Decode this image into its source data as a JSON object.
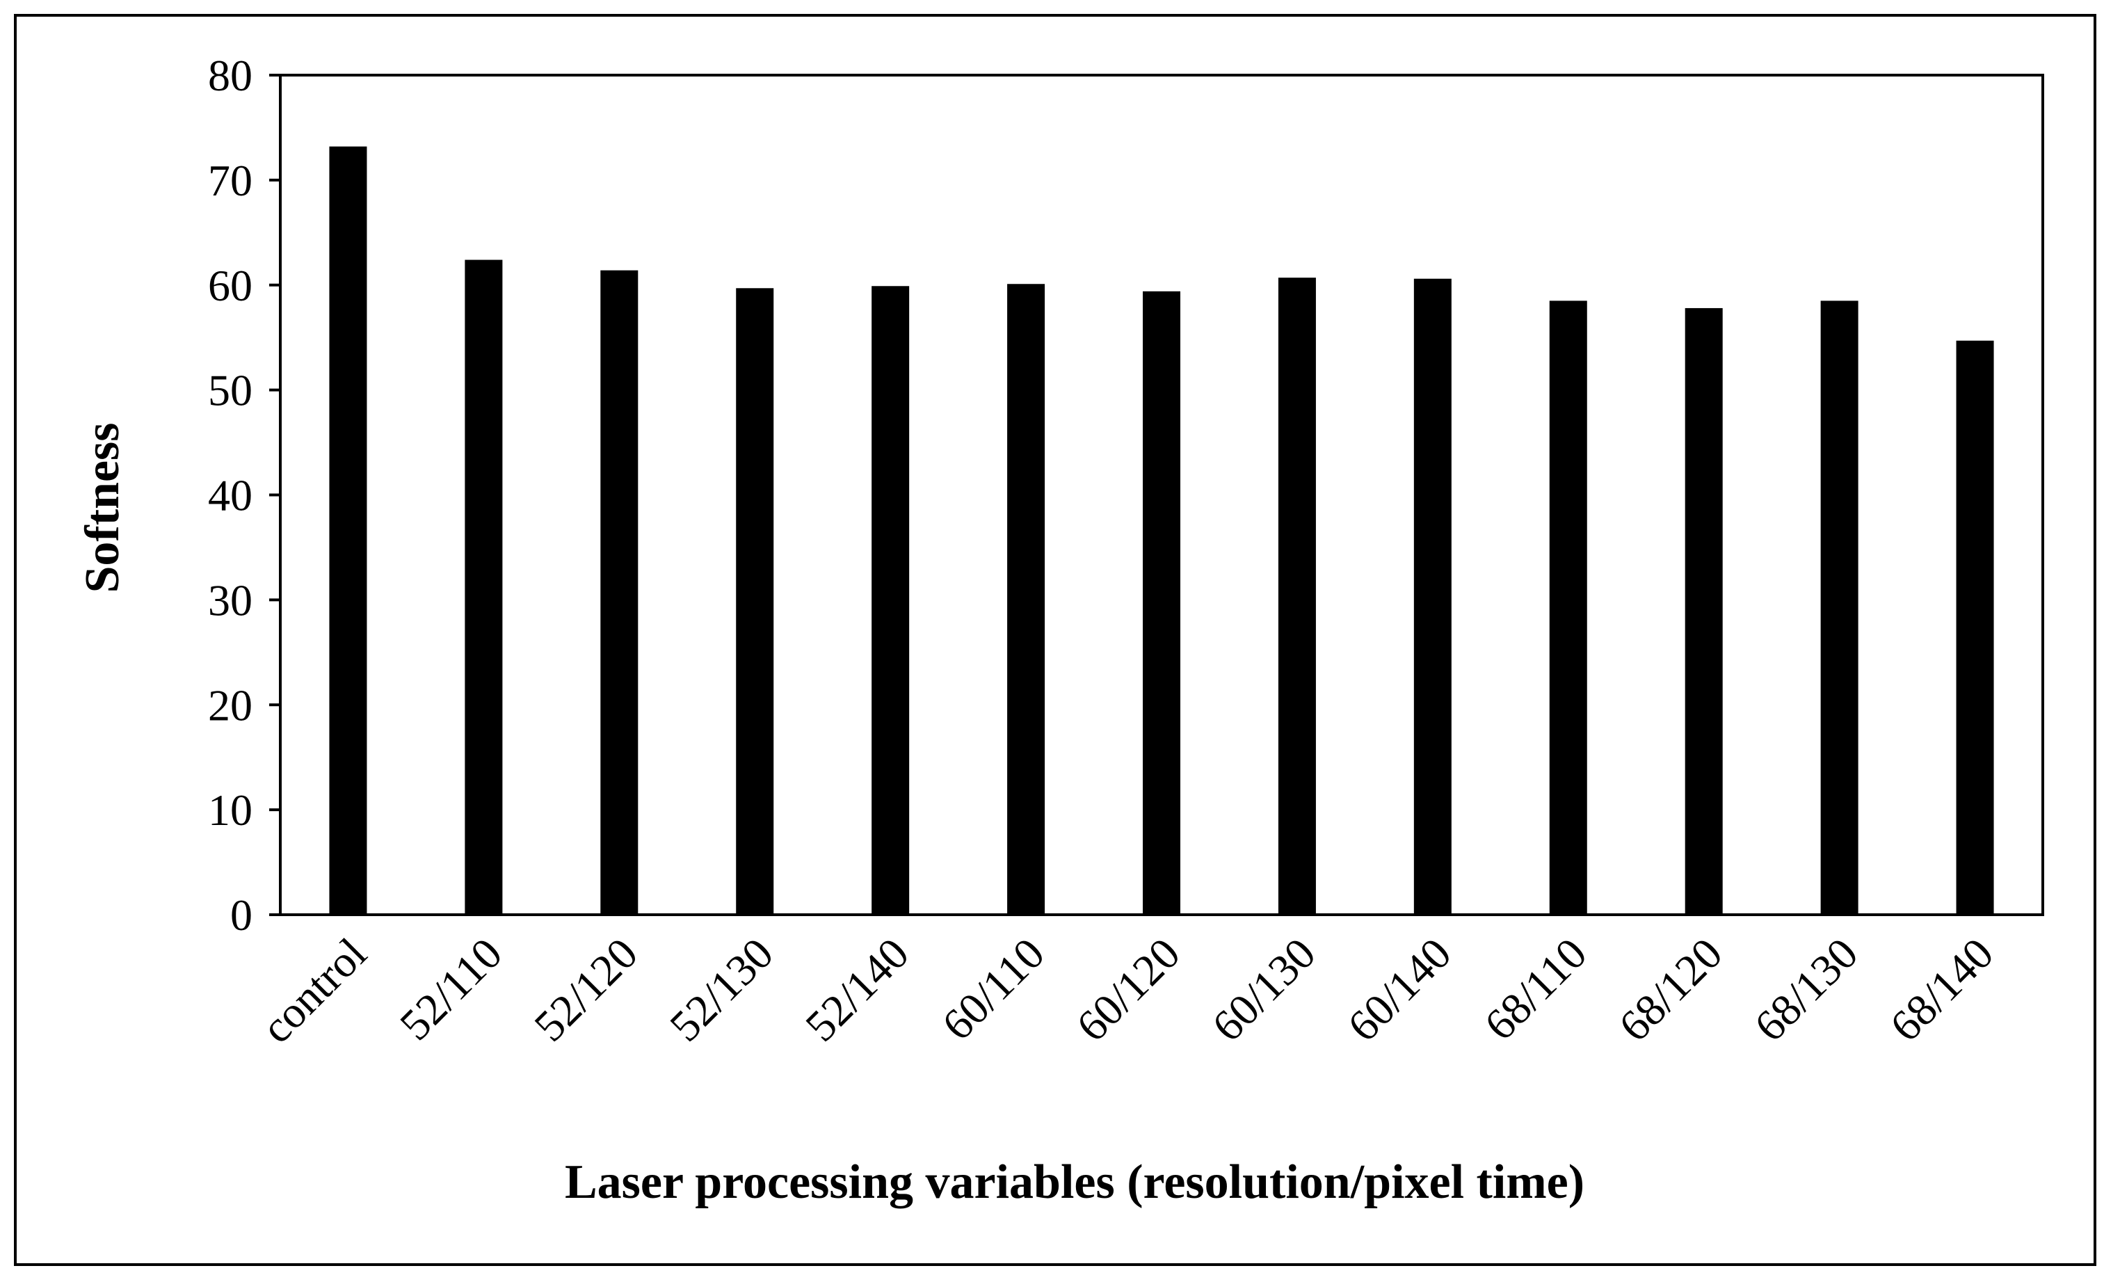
{
  "chart_data": {
    "type": "bar",
    "title": "",
    "xlabel": "Laser processing variables (resolution/pixel time)",
    "ylabel": "Softness",
    "ylim": [
      0,
      80
    ],
    "yticks": [
      0,
      10,
      20,
      30,
      40,
      50,
      60,
      70,
      80
    ],
    "categories": [
      "control",
      "52/110",
      "52/120",
      "52/130",
      "52/140",
      "60/110",
      "60/120",
      "60/130",
      "60/140",
      "68/110",
      "68/120",
      "68/130",
      "68/140"
    ],
    "values": [
      73.2,
      62.4,
      61.4,
      59.7,
      59.9,
      60.1,
      59.4,
      60.7,
      60.6,
      58.5,
      57.8,
      58.5,
      54.7
    ],
    "bar_color": "#000000",
    "grid": false,
    "legend": "none"
  }
}
